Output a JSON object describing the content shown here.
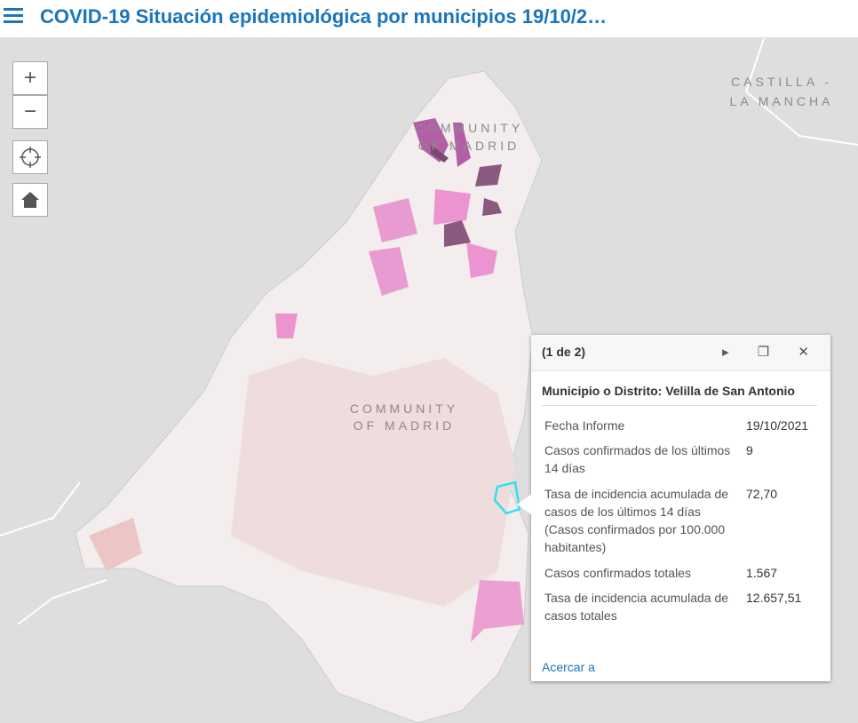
{
  "header": {
    "title": "COVID-19 Situación epidemiológica por municipios 19/10/2…"
  },
  "map": {
    "labels": [
      "CASTILLA -",
      "LA MANCHA",
      "COMMUNITY",
      "OF MADRID",
      "COMMUNITY",
      "OF MADRID"
    ],
    "controls": [
      "+",
      "−"
    ]
  },
  "popup": {
    "counter": "(1 de 2)",
    "heading": "Municipio o Distrito: Velilla de San Antonio",
    "rows": [
      [
        "Fecha Informe",
        "19/10/2021"
      ],
      [
        "Casos confirmados de los últimos 14 días",
        "9"
      ],
      [
        "Tasa de incidencia acumulada de casos de los últimos 14 días (Casos confirmados por 100.000 habitantes)",
        "72,70"
      ],
      [
        "Casos confirmados totales",
        "1.567"
      ],
      [
        "Tasa de incidencia acumulada de casos totales",
        "12.657,51"
      ]
    ],
    "action": "Acercar a"
  }
}
